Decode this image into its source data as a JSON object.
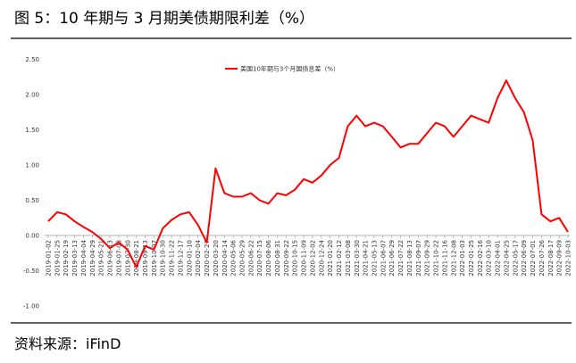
{
  "chart_data": {
    "type": "line",
    "title": "图 5：10 年期与 3 月期美债期限利差（%）",
    "source": "资料来源：iFinD",
    "categories": [
      "2019-01-02",
      "2019-01-25",
      "2019-02-19",
      "2019-03-13",
      "2019-04-04",
      "2019-04-29",
      "2019-05-21",
      "2019-06-13",
      "2019-07-08",
      "2019-07-30",
      "2019-08-21",
      "2019-09-13",
      "2019-10-07",
      "2019-10-30",
      "2019-11-22",
      "2019-12-17",
      "2020-01-10",
      "2020-02-04",
      "2020-02-27",
      "2020-03-20",
      "2020-04-14",
      "2020-05-06",
      "2020-05-29",
      "2020-06-22",
      "2020-07-15",
      "2020-08-06",
      "2020-08-31",
      "2020-09-22",
      "2020-10-15",
      "2020-11-09",
      "2020-12-02",
      "2020-12-24",
      "2021-01-20",
      "2021-02-12",
      "2021-03-08",
      "2021-03-30",
      "2021-04-21",
      "2021-05-13",
      "2021-06-07",
      "2021-06-29",
      "2021-07-22",
      "2021-08-13",
      "2021-09-07",
      "2021-09-29",
      "2021-10-22",
      "2021-11-16",
      "2021-12-08",
      "2022-01-03",
      "2022-01-25",
      "2022-02-16",
      "2022-03-10",
      "2022-04-01",
      "2022-04-25",
      "2022-05-17",
      "2022-06-09",
      "2022-07-01",
      "2022-07-26",
      "2022-08-17",
      "2022-09-09",
      "2022-10-03"
    ],
    "series": [
      {
        "name": "美国10年期与3个月国债息差（%）",
        "color": "#ff0000",
        "values": [
          0.2,
          0.33,
          0.3,
          0.2,
          0.12,
          0.05,
          -0.05,
          -0.18,
          -0.1,
          -0.2,
          -0.45,
          -0.15,
          -0.2,
          0.1,
          0.22,
          0.3,
          0.33,
          0.15,
          -0.1,
          0.95,
          0.6,
          0.55,
          0.55,
          0.6,
          0.5,
          0.45,
          0.6,
          0.57,
          0.65,
          0.8,
          0.75,
          0.85,
          1.0,
          1.1,
          1.55,
          1.7,
          1.55,
          1.6,
          1.55,
          1.4,
          1.25,
          1.3,
          1.3,
          1.45,
          1.6,
          1.55,
          1.4,
          1.55,
          1.7,
          1.65,
          1.6,
          1.95,
          2.2,
          1.95,
          1.75,
          1.35,
          0.3,
          0.2,
          0.25,
          0.05
        ]
      }
    ],
    "ylim": [
      -1,
      2.5
    ],
    "yticks": [
      {
        "value": -1,
        "label": "-1.00"
      },
      {
        "value": -0.5,
        "label": "-0.50"
      },
      {
        "value": 0,
        "label": "0.00"
      },
      {
        "value": 0.5,
        "label": "0.50"
      },
      {
        "value": 1,
        "label": "1.00"
      },
      {
        "value": 1.5,
        "label": "1.50"
      },
      {
        "value": 2,
        "label": "2.00"
      },
      {
        "value": 2.5,
        "label": "2.50"
      }
    ],
    "grid": false,
    "legend": "top"
  }
}
